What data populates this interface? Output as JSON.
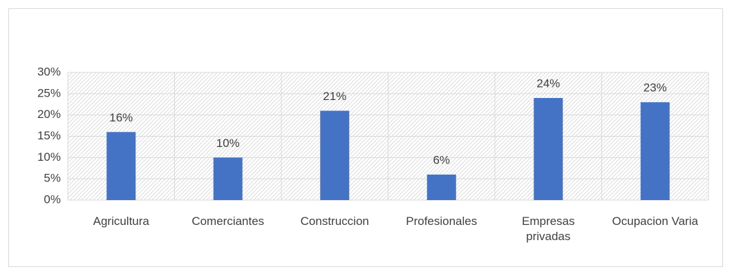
{
  "chart_data": {
    "type": "bar",
    "categories": [
      "Agricultura",
      "Comerciantes",
      "Construccion",
      "Profesionales",
      "Empresas privadas",
      "Ocupacion Varia"
    ],
    "values": [
      16,
      10,
      21,
      6,
      24,
      23
    ],
    "value_labels": [
      "16%",
      "10%",
      "21%",
      "6%",
      "24%",
      "23%"
    ],
    "color": "#4472c4",
    "ylim": [
      0,
      30
    ],
    "yticks": [
      {
        "value": 0,
        "label": "0%"
      },
      {
        "value": 5,
        "label": "5%"
      },
      {
        "value": 10,
        "label": "10%"
      },
      {
        "value": 15,
        "label": "15%"
      },
      {
        "value": 20,
        "label": "20%"
      },
      {
        "value": 25,
        "label": "25%"
      },
      {
        "value": 30,
        "label": "30%"
      }
    ],
    "grid": true
  }
}
